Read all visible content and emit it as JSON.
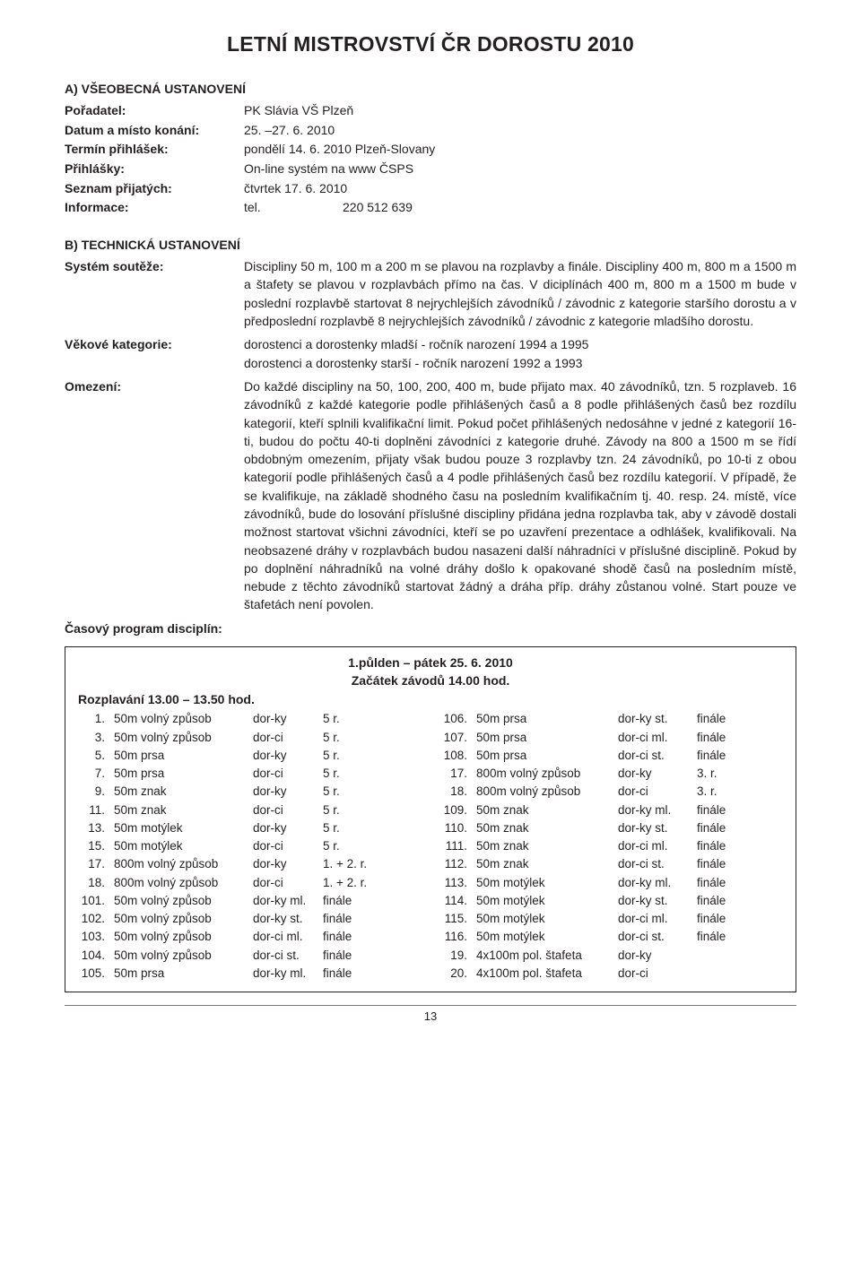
{
  "title": "LETNÍ MISTROVSTVÍ ČR DOROSTU 2010",
  "sectionA": {
    "heading": "A) VŠEOBECNÁ USTANOVENÍ",
    "rows": [
      {
        "label": "Pořadatel:",
        "value": "PK Slávia VŠ Plzeň"
      },
      {
        "label": "Datum a místo konání:",
        "value": "25. –27. 6. 2010"
      },
      {
        "label": "Termín přihlášek:",
        "value": "pondělí 14. 6. 2010 Plzeň-Slovany"
      },
      {
        "label": "Přihlášky:",
        "value": "On-line systém na www ČSPS"
      },
      {
        "label": "Seznam přijatých:",
        "value": "čtvrtek 17. 6. 2010"
      }
    ],
    "info": {
      "label": "Informace:",
      "v1": "tel.",
      "v2": "220 512 639"
    }
  },
  "sectionB": {
    "heading": "B) TECHNICKÁ USTANOVENÍ",
    "paras": [
      {
        "label": "Systém soutěže:",
        "text": "Discipliny 50 m, 100 m a 200 m se plavou na rozplavby a finále. Discipliny 400 m, 800 m a 1500 m a štafety se plavou v rozplavbách přímo na čas. V diciplínách 400 m, 800 m a 1500 m bude v poslední rozplavbě startovat 8 nejrychlejších závodníků / závodnic z kategorie staršího dorostu a v předposlední rozplavbě 8 nejrychlejších závodníků / závodnic z kategorie mladšího dorostu."
      },
      {
        "label": "Věkové kategorie:",
        "text": "dorostenci a dorostenky mladší - ročník narození 1994 a 1995\ndorostenci a dorostenky starší - ročník narození 1992 a 1993"
      },
      {
        "label": "Omezení:",
        "text": "Do každé discipliny na 50, 100, 200, 400 m, bude přijato max. 40 závodníků, tzn. 5 rozplaveb. 16 závodníků z každé kategorie podle přihlášených časů a 8 podle přihlášených časů bez rozdílu kategorií, kteří splnili kvalifikační limit. Pokud počet přihlášených nedosáhne v jedné z kategorií 16-ti, budou do počtu 40-ti doplněni závodníci z kategorie druhé. Závody na 800 a 1500 m se řídí obdobným omezením, přijaty však budou pouze 3 rozplavby tzn. 24 závodníků, po 10-ti z obou kategorií podle přihlášených časů a 4 podle přihlášených časů bez rozdílu kategorií. V případě, že se kvalifikuje, na základě shodného času na posledním kvalifikačním tj. 40. resp. 24. místě, více závodníků, bude do losování příslušné discipliny přidána jedna rozplavba tak, aby v závodě dostali možnost startovat všichni závodníci, kteří se po uzavření prezentace a odhlášek, kvalifikovali. Na neobsazené dráhy v rozplavbách budou nasazeni další náhradníci v příslušné disciplině. Pokud by po doplnění náhradníků na volné dráhy došlo k opakované shodě časů na posledním místě, nebude z těchto závodníků startovat žádný a dráha příp. dráhy zůstanou volné. Start pouze ve štafetách není povolen."
      }
    ],
    "scheduleLabel": "Časový program disciplín:"
  },
  "schedule": {
    "head1": "1.půlden – pátek 25. 6. 2010",
    "head2": "Začátek závodů 14.00 hod.",
    "warmup": "Rozplavání 13.00 – 13.50 hod.",
    "left": [
      {
        "n": "1.",
        "e": "50m volný způsob",
        "c": "dor-ky",
        "r": "5 r."
      },
      {
        "n": "3.",
        "e": "50m volný způsob",
        "c": "dor-ci",
        "r": "5 r."
      },
      {
        "n": "5.",
        "e": "50m prsa",
        "c": "dor-ky",
        "r": "5 r."
      },
      {
        "n": "7.",
        "e": "50m prsa",
        "c": "dor-ci",
        "r": "5 r."
      },
      {
        "n": "9.",
        "e": "50m znak",
        "c": "dor-ky",
        "r": "5 r."
      },
      {
        "n": "11.",
        "e": "50m znak",
        "c": "dor-ci",
        "r": "5 r."
      },
      {
        "n": "13.",
        "e": "50m motýlek",
        "c": "dor-ky",
        "r": "5 r."
      },
      {
        "n": "15.",
        "e": "50m motýlek",
        "c": "dor-ci",
        "r": "5 r."
      },
      {
        "n": "17.",
        "e": "800m volný způsob",
        "c": "dor-ky",
        "r": "1. + 2. r."
      },
      {
        "n": "18.",
        "e": "800m volný způsob",
        "c": "dor-ci",
        "r": "1. + 2. r."
      },
      {
        "n": "101.",
        "e": "50m volný způsob",
        "c": "dor-ky ml.",
        "r": "finále"
      },
      {
        "n": "102.",
        "e": "50m volný způsob",
        "c": "dor-ky st.",
        "r": "finále"
      },
      {
        "n": "103.",
        "e": "50m volný způsob",
        "c": "dor-ci ml.",
        "r": "finále"
      },
      {
        "n": "104.",
        "e": "50m volný způsob",
        "c": "dor-ci st.",
        "r": "finále"
      },
      {
        "n": "105.",
        "e": "50m prsa",
        "c": "dor-ky ml.",
        "r": "finále"
      }
    ],
    "right": [
      {
        "n": "106.",
        "e": "50m prsa",
        "c": "dor-ky st.",
        "r": "finále"
      },
      {
        "n": "107.",
        "e": "50m prsa",
        "c": "dor-ci ml.",
        "r": "finále"
      },
      {
        "n": "108.",
        "e": "50m prsa",
        "c": "dor-ci st.",
        "r": "finále"
      },
      {
        "n": "17.",
        "e": "800m volný způsob",
        "c": "dor-ky",
        "r": "3. r."
      },
      {
        "n": "18.",
        "e": "800m volný způsob",
        "c": "dor-ci",
        "r": "3. r."
      },
      {
        "n": "109.",
        "e": "50m znak",
        "c": "dor-ky ml.",
        "r": "finále"
      },
      {
        "n": "110.",
        "e": "50m znak",
        "c": "dor-ky st.",
        "r": "finále"
      },
      {
        "n": "111.",
        "e": "50m znak",
        "c": "dor-ci ml.",
        "r": "finále"
      },
      {
        "n": "112.",
        "e": "50m znak",
        "c": "dor-ci st.",
        "r": "finále"
      },
      {
        "n": "113.",
        "e": "50m motýlek",
        "c": "dor-ky ml.",
        "r": "finále"
      },
      {
        "n": "114.",
        "e": "50m motýlek",
        "c": "dor-ky st.",
        "r": "finále"
      },
      {
        "n": "115.",
        "e": "50m motýlek",
        "c": "dor-ci ml.",
        "r": "finále"
      },
      {
        "n": "116.",
        "e": "50m motýlek",
        "c": "dor-ci st.",
        "r": "finále"
      },
      {
        "n": "19.",
        "e": "4x100m pol. štafeta",
        "c": "dor-ky",
        "r": ""
      },
      {
        "n": "20.",
        "e": "4x100m pol. štafeta",
        "c": "dor-ci",
        "r": ""
      }
    ]
  },
  "pageNumber": "13"
}
